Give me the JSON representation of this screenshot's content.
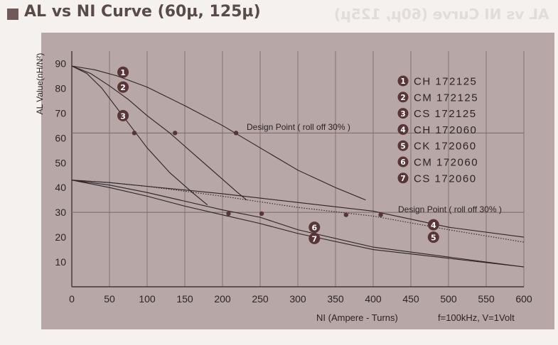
{
  "page": {
    "title": "AL vs NI Curve (60µ, 125µ)",
    "mirrored_heading": "AL vs NI Curve (60µ, 125µ)"
  },
  "colors": {
    "panel": "#b7a7a7",
    "grid": "#7a6767",
    "curve": "#2d2326",
    "marker": "#5a3535",
    "text": "#2d2326"
  },
  "chart_data": {
    "type": "line",
    "title": "AL vs NI Curve (60µ, 125µ)",
    "xlabel": "NI (Ampere - Turns)",
    "ylabel": "AL Value(nH/N²)",
    "condition": "f=100kHz, V=1Volt",
    "xlim": [
      0,
      600
    ],
    "ylim": [
      0,
      95
    ],
    "xticks": [
      0,
      50,
      100,
      150,
      200,
      250,
      300,
      350,
      400,
      450,
      500,
      550,
      600
    ],
    "yticks": [
      10,
      20,
      30,
      40,
      50,
      60,
      70,
      80,
      90
    ],
    "grid": "vertical lines every 50, horizontal lines at 30 and 62",
    "reference_lines": [
      {
        "y": 62,
        "label": "Design Point ( roll off 30% )"
      },
      {
        "y": 30,
        "label": "Design Point ( roll off 30% )"
      }
    ],
    "legend": [
      "CH 172125",
      "CM 172125",
      "CS 172125",
      "CH 172060",
      "CK 172060",
      "CM 172060",
      "CS 172060"
    ],
    "series": [
      {
        "name": "CH 172125",
        "id": "1",
        "x": [
          0,
          30,
          60,
          100,
          150,
          200,
          250,
          300,
          350,
          390
        ],
        "y": [
          89,
          87.5,
          85,
          80.5,
          73,
          65,
          56,
          47,
          40,
          35
        ]
      },
      {
        "name": "CM 172125",
        "id": "2",
        "x": [
          0,
          25,
          50,
          75,
          100,
          130,
          160,
          190,
          220,
          232
        ],
        "y": [
          89,
          86,
          81,
          75.5,
          69,
          62,
          54,
          46,
          38,
          35
        ]
      },
      {
        "name": "CS 172125",
        "id": "3",
        "x": [
          0,
          20,
          40,
          60,
          80,
          100,
          130,
          160,
          180
        ],
        "y": [
          89,
          86,
          80,
          72,
          64,
          56,
          46,
          38,
          33
        ]
      },
      {
        "name": "CH 172060",
        "id": "4",
        "x": [
          0,
          50,
          100,
          200,
          300,
          400,
          500,
          600
        ],
        "y": [
          43,
          42,
          40.5,
          37.5,
          34,
          30.5,
          24,
          20
        ]
      },
      {
        "name": "CK 172060",
        "id": "5",
        "x": [
          0,
          50,
          100,
          200,
          300,
          400,
          500,
          600
        ],
        "y": [
          43,
          42,
          40.5,
          36.5,
          32,
          28.5,
          23,
          18
        ]
      },
      {
        "name": "CM 172060",
        "id": "6",
        "x": [
          0,
          50,
          100,
          150,
          200,
          250,
          300,
          400,
          500,
          600
        ],
        "y": [
          43,
          41,
          38,
          34.5,
          31,
          28,
          23,
          16,
          12,
          8
        ]
      },
      {
        "name": "CS 172060",
        "id": "7",
        "x": [
          0,
          50,
          100,
          150,
          200,
          250,
          300,
          400,
          500,
          600
        ],
        "y": [
          43,
          40,
          36.5,
          32.5,
          29,
          25.5,
          21.5,
          15,
          11.5,
          8
        ]
      }
    ],
    "design_points": [
      {
        "series": "CS 172125",
        "x": 83,
        "y": 62
      },
      {
        "series": "CM 172125",
        "x": 137,
        "y": 62
      },
      {
        "series": "CH 172125",
        "x": 218,
        "y": 62
      },
      {
        "series": "CS 172060",
        "x": 208,
        "y": 29.5
      },
      {
        "series": "CM 172060",
        "x": 252,
        "y": 29.5
      },
      {
        "series": "CK 172060",
        "x": 364,
        "y": 29
      },
      {
        "series": "CH 172060",
        "x": 410,
        "y": 29
      }
    ],
    "curve_badges": [
      {
        "id": "1",
        "x": 68,
        "y": 86.5
      },
      {
        "id": "2",
        "x": 68,
        "y": 80.5
      },
      {
        "id": "3",
        "x": 68,
        "y": 69
      },
      {
        "id": "4",
        "x": 480,
        "y": 25
      },
      {
        "id": "5",
        "x": 480,
        "y": 20
      },
      {
        "id": "6",
        "x": 322,
        "y": 24
      },
      {
        "id": "7",
        "x": 322,
        "y": 19.5
      }
    ]
  }
}
